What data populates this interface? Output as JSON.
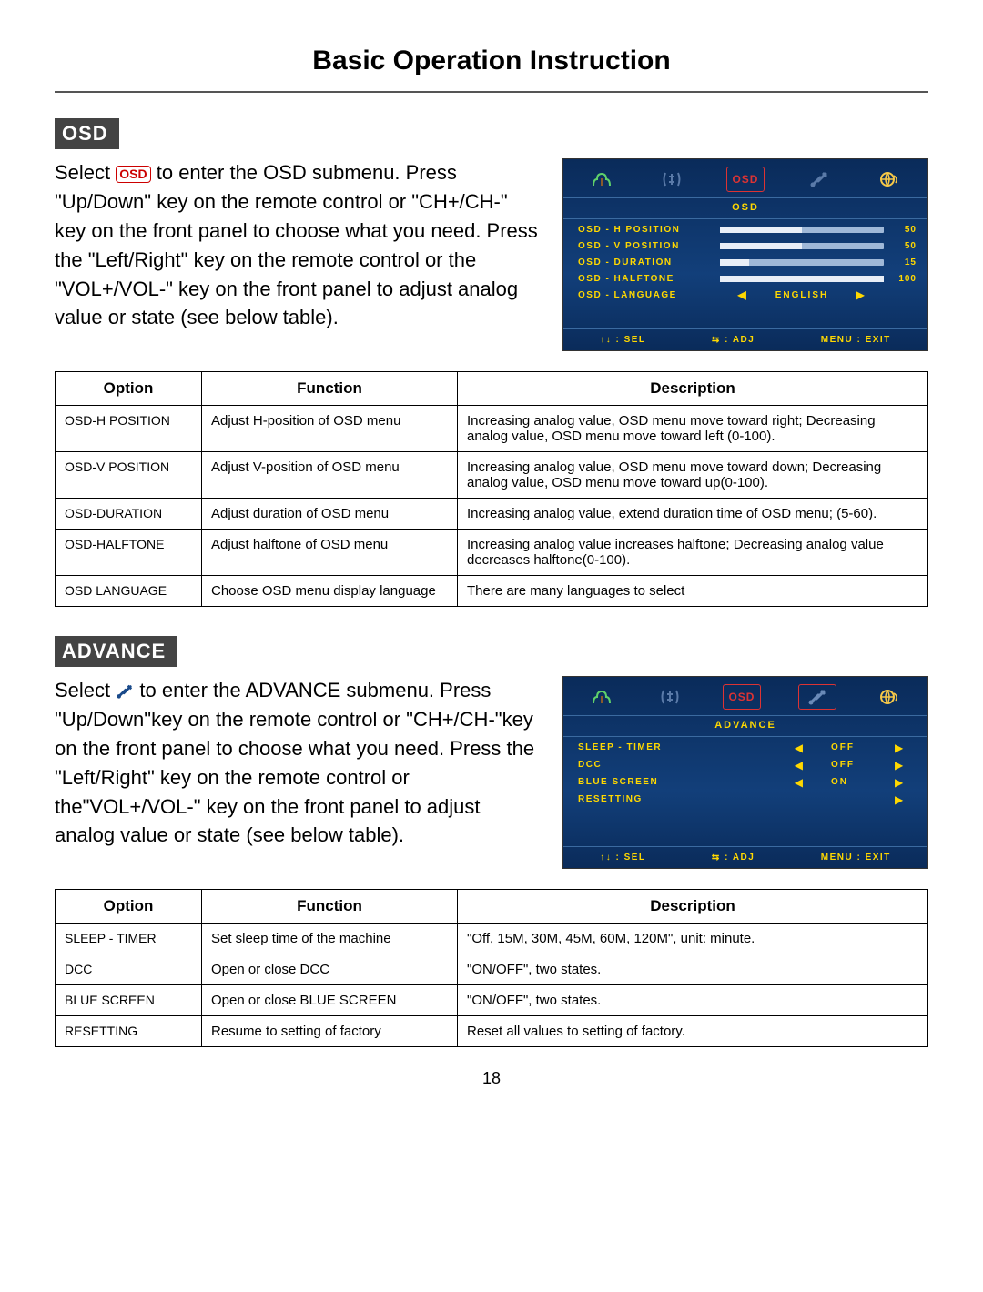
{
  "page": {
    "title": "Basic Operation Instruction",
    "number": "18"
  },
  "osd_section": {
    "header": "OSD",
    "text_pre": "Select ",
    "text_post": " to enter the OSD submenu. Press \"Up/Down\" key on the remote control or \"CH+/CH-\" key on the front panel to choose what you need. Press the \"Left/Right\" key on  the remote control or the \"VOL+/VOL-\" key on the front panel to adjust analog  value or state (see below table).",
    "badge": "OSD"
  },
  "osd_panel": {
    "heading": "OSD",
    "rows": [
      {
        "label": "OSD - H  POSITION",
        "value": "50",
        "pct": 50
      },
      {
        "label": "OSD - V  POSITION",
        "value": "50",
        "pct": 50
      },
      {
        "label": "OSD - DURATION",
        "value": "15",
        "pct": 18
      },
      {
        "label": "OSD - HALFTONE",
        "value": "100",
        "pct": 100
      }
    ],
    "language_row": {
      "label": "OSD - LANGUAGE",
      "value": "ENGLISH"
    },
    "footer": {
      "sel": ": SEL",
      "adj": ": ADJ",
      "exit": "MENU : EXIT"
    }
  },
  "osd_table": {
    "headers": [
      "Option",
      "Function",
      "Description"
    ],
    "rows": [
      [
        "OSD-H  POSITION",
        "Adjust H-position of OSD menu",
        "Increasing analog value, OSD menu move toward right; Decreasing analog value, OSD menu move toward left (0-100)."
      ],
      [
        "OSD-V  POSITION",
        "Adjust V-position of OSD menu",
        "Increasing analog value, OSD menu move toward down; Decreasing analog value, OSD menu move toward up(0-100)."
      ],
      [
        "OSD-DURATION",
        "Adjust duration of OSD menu",
        "Increasing analog value, extend duration time of OSD menu; (5-60)."
      ],
      [
        "OSD-HALFTONE",
        "Adjust halftone of OSD menu",
        "Increasing analog value increases halftone; Decreasing analog value decreases halftone(0-100)."
      ],
      [
        "OSD  LANGUAGE",
        "Choose OSD  menu display language",
        "There are many languages to select"
      ]
    ]
  },
  "adv_section": {
    "header": "ADVANCE",
    "text_pre": "Select ",
    "text_post": " to enter the ADVANCE submenu. Press \"Up/Down\"key on the remote control or \"CH+/CH-\"key on the front panel to choose what you need. Press the \"Left/Right\" key on the remote control or the\"VOL+/VOL-\" key on the front panel to adjust analog  value or state (see below table)."
  },
  "adv_panel": {
    "heading": "ADVANCE",
    "rows": [
      {
        "label": "SLEEP - TIMER",
        "value": "OFF",
        "left": true,
        "right": true
      },
      {
        "label": "DCC",
        "value": "OFF",
        "left": true,
        "right": true
      },
      {
        "label": "BLUE  SCREEN",
        "value": "ON",
        "left": true,
        "right": true
      },
      {
        "label": "RESETTING",
        "value": "",
        "left": false,
        "right": true
      }
    ],
    "footer": {
      "sel": ": SEL",
      "adj": ": ADJ",
      "exit": "MENU : EXIT"
    }
  },
  "adv_table": {
    "headers": [
      "Option",
      "Function",
      "Description"
    ],
    "rows": [
      [
        "SLEEP - TIMER",
        "Set sleep time of the machine",
        "\"Off, 15M, 30M, 45M, 60M, 120M\", unit: minute."
      ],
      [
        "DCC",
        "Open or close DCC",
        "\"ON/OFF\", two states."
      ],
      [
        "BLUE SCREEN",
        "Open or close BLUE  SCREEN",
        "\"ON/OFF\", two states."
      ],
      [
        "RESETTING",
        "Resume to setting of factory",
        "Reset all values to setting of factory."
      ]
    ]
  },
  "colors": {
    "panel_bg": "#0f3e78",
    "panel_text": "#ffd800",
    "section_bg": "#444444"
  }
}
